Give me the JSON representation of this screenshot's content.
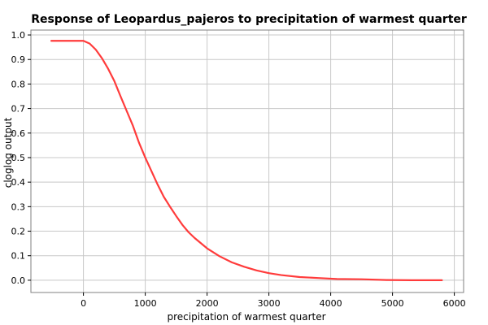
{
  "chart_data": {
    "type": "line",
    "title": "Response of Leopardus_pajeros to precipitation of warmest quarter",
    "xlabel": "precipitation of warmest quarter",
    "ylabel": "cloglog output",
    "xlim": [
      -850,
      6150
    ],
    "ylim": [
      -0.05,
      1.02
    ],
    "xticks": [
      0,
      1000,
      2000,
      3000,
      4000,
      5000,
      6000
    ],
    "yticks": [
      0.0,
      0.1,
      0.2,
      0.3,
      0.4,
      0.5,
      0.6,
      0.7,
      0.8,
      0.9,
      1.0
    ],
    "grid": true,
    "series": [
      {
        "color": "#ff3b3b",
        "x": [
          -520,
          0,
          100,
          200,
          300,
          400,
          500,
          600,
          700,
          800,
          900,
          1000,
          1100,
          1200,
          1300,
          1400,
          1500,
          1600,
          1700,
          1800,
          2000,
          2200,
          2400,
          2600,
          2800,
          3000,
          3200,
          3500,
          3800,
          4100,
          4500,
          4900,
          5300,
          5800
        ],
        "y": [
          0.976,
          0.976,
          0.965,
          0.94,
          0.905,
          0.862,
          0.812,
          0.75,
          0.69,
          0.63,
          0.56,
          0.5,
          0.445,
          0.39,
          0.34,
          0.3,
          0.262,
          0.226,
          0.196,
          0.172,
          0.13,
          0.098,
          0.073,
          0.055,
          0.04,
          0.029,
          0.021,
          0.013,
          0.009,
          0.005,
          0.004,
          0.001,
          0.0,
          0.0
        ]
      }
    ]
  }
}
